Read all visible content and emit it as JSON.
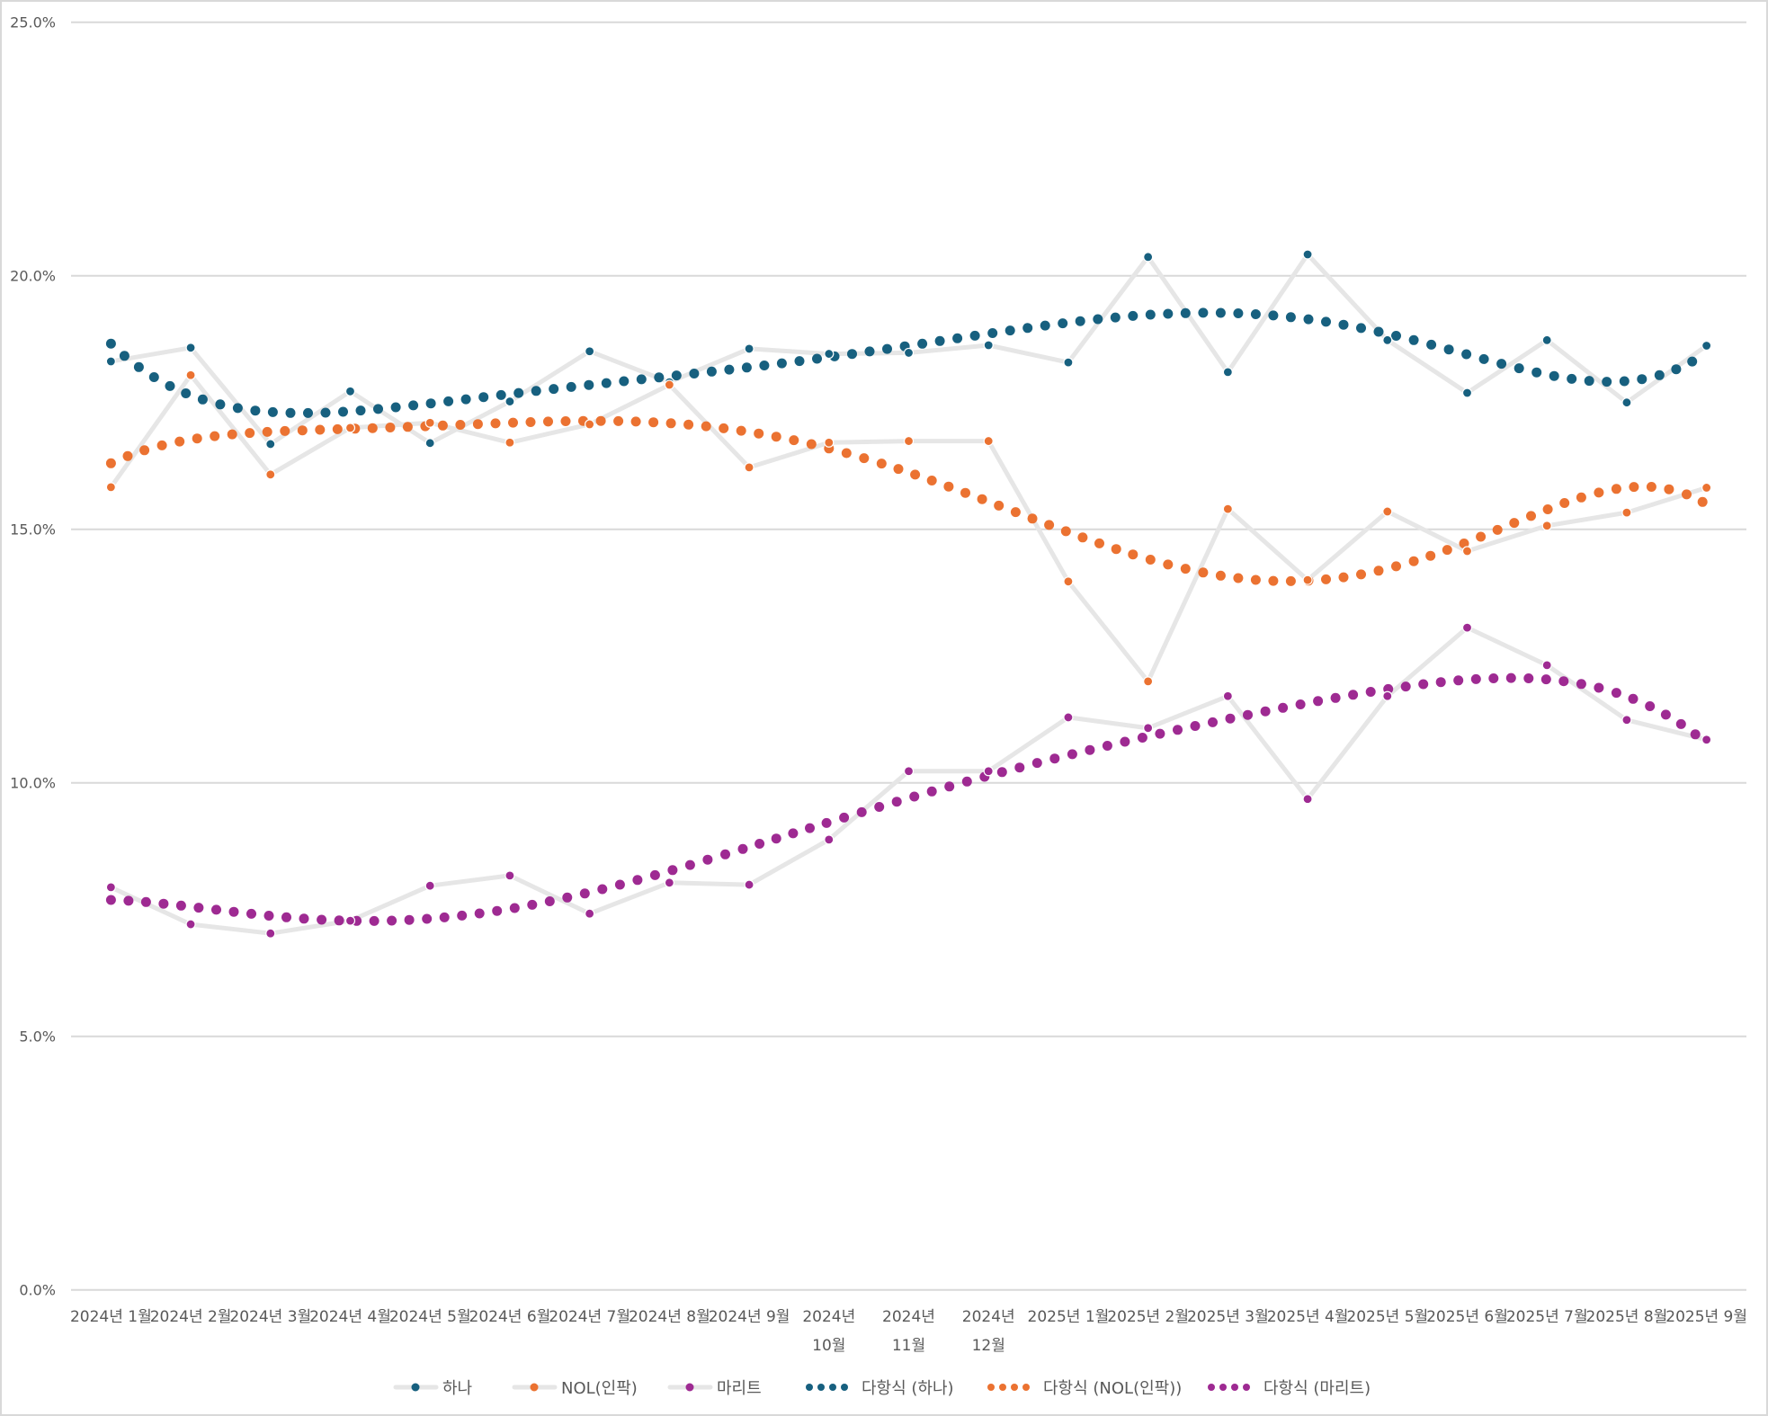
{
  "chart_data": {
    "type": "line",
    "title": "",
    "xlabel": "",
    "ylabel": "",
    "ylim": [
      0,
      25
    ],
    "yticks": [
      "0.0%",
      "5.0%",
      "10.0%",
      "15.0%",
      "20.0%",
      "25.0%"
    ],
    "ytick_values": [
      0,
      5,
      10,
      15,
      20,
      25
    ],
    "grid": true,
    "legend_position": "bottom",
    "categories": [
      [
        "2024년 1월"
      ],
      [
        "2024년 2월"
      ],
      [
        "2024년 3월"
      ],
      [
        "2024년 4월"
      ],
      [
        "2024년 5월"
      ],
      [
        "2024년 6월"
      ],
      [
        "2024년 7월"
      ],
      [
        "2024년 8월"
      ],
      [
        "2024년 9월"
      ],
      [
        "2024년",
        "10월"
      ],
      [
        "2024년",
        "11월"
      ],
      [
        "2024년",
        "12월"
      ],
      [
        "2025년 1월"
      ],
      [
        "2025년 2월"
      ],
      [
        "2025년 3월"
      ],
      [
        "2025년 4월"
      ],
      [
        "2025년 5월"
      ],
      [
        "2025년 6월"
      ],
      [
        "2025년 7월"
      ],
      [
        "2025년 8월"
      ],
      [
        "2025년 9월"
      ]
    ],
    "series": [
      {
        "name": "하나",
        "color": "#17607f",
        "line_color": "#e6e6e6",
        "values": [
          18.31,
          18.58,
          16.68,
          17.72,
          16.7,
          17.52,
          18.51,
          17.9,
          18.56,
          18.46,
          18.48,
          18.63,
          18.29,
          20.37,
          18.1,
          20.42,
          18.73,
          17.69,
          18.73,
          17.5,
          18.62
        ]
      },
      {
        "name": "NOL(인팍)",
        "color": "#eb7231",
        "line_color": "#e6e6e6",
        "values": [
          15.83,
          18.04,
          16.08,
          17.0,
          17.1,
          16.71,
          17.07,
          17.85,
          16.22,
          16.71,
          16.74,
          16.74,
          13.97,
          12.0,
          15.4,
          14.0,
          15.35,
          14.57,
          15.07,
          15.33,
          15.82
        ]
      },
      {
        "name": "마리트",
        "color": "#9e2a92",
        "line_color": "#e6e6e6",
        "values": [
          7.94,
          7.21,
          7.03,
          7.28,
          7.97,
          8.17,
          7.42,
          8.03,
          7.99,
          8.88,
          10.23,
          10.23,
          11.29,
          11.08,
          11.71,
          9.68,
          11.71,
          13.06,
          12.32,
          11.24,
          10.85
        ]
      }
    ],
    "trendlines": [
      {
        "name": "다항식 (하나)",
        "series": 0,
        "type": "polynomial",
        "order": 6,
        "color": "#17607f"
      },
      {
        "name": "다항식 (NOL(인팍))",
        "series": 1,
        "type": "polynomial",
        "order": 6,
        "color": "#eb7231"
      },
      {
        "name": "다항식 (마리트)",
        "series": 2,
        "type": "polynomial",
        "order": 6,
        "color": "#9e2a92"
      }
    ]
  }
}
